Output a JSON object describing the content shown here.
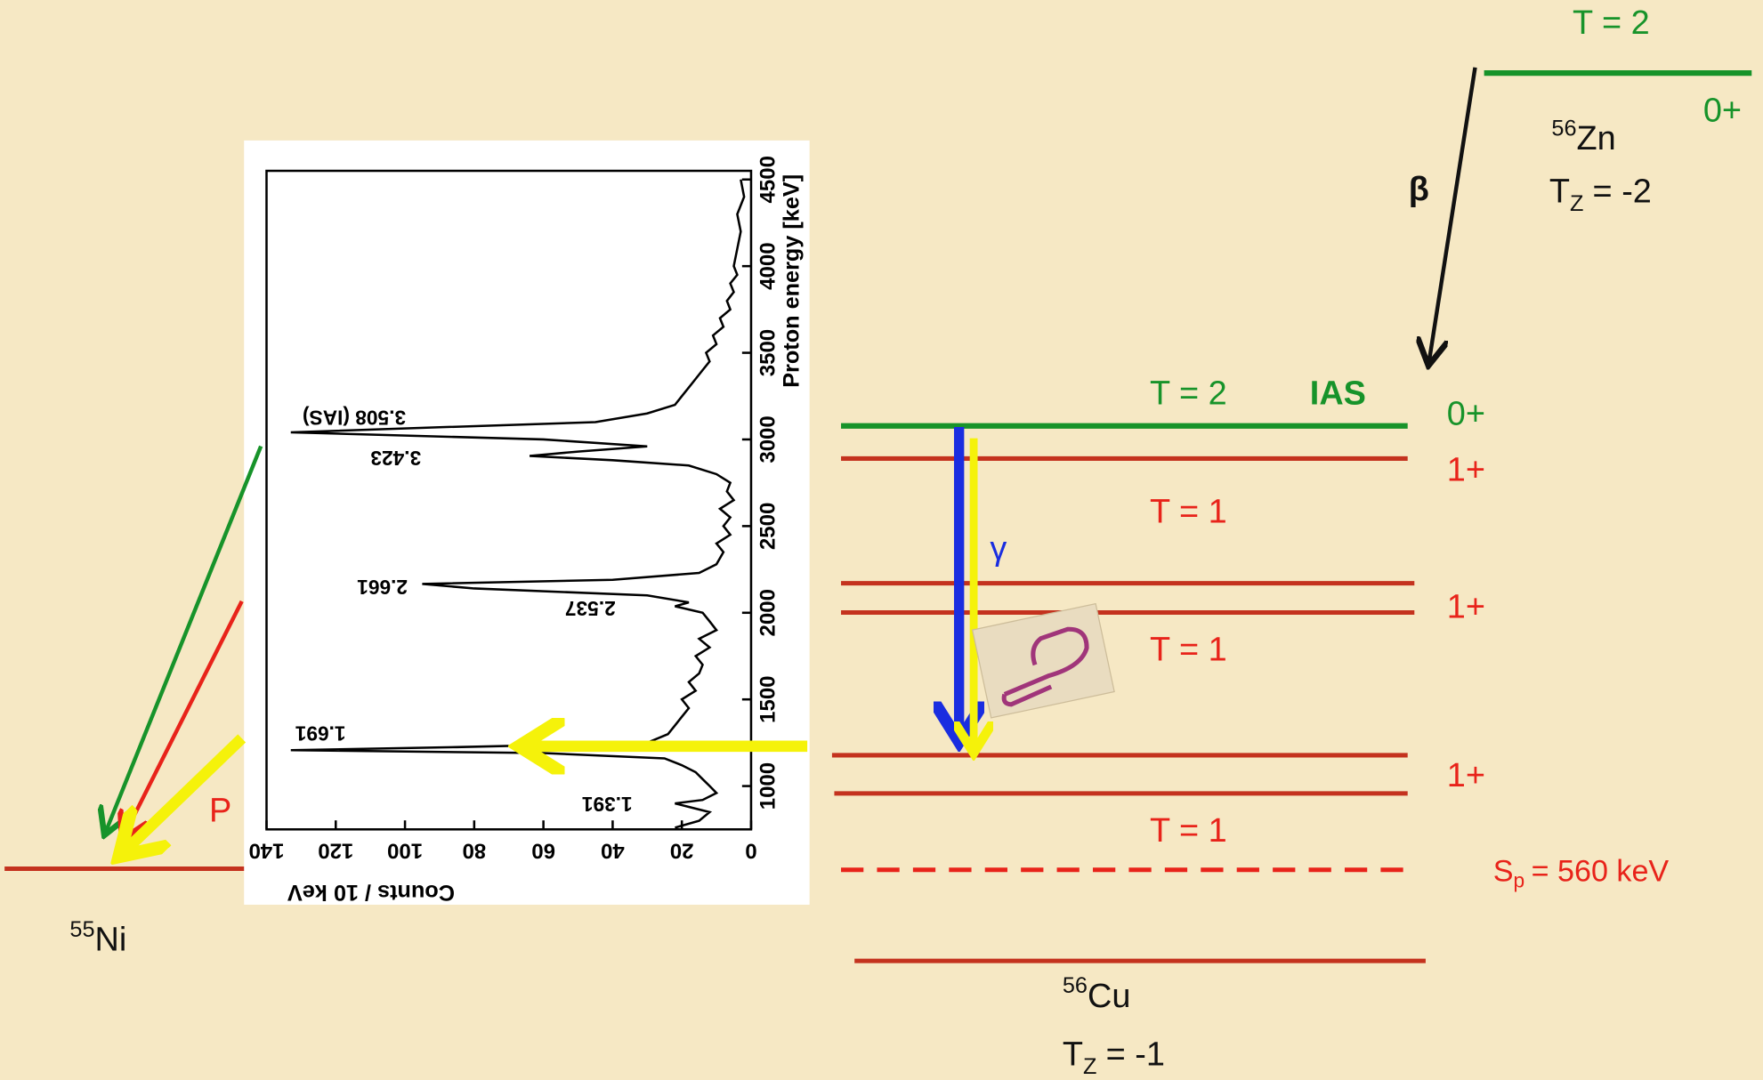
{
  "diagram": {
    "zn56": {
      "level_isospin": "T = 2",
      "spin": "0+",
      "mass": "56",
      "symbol": "Zn",
      "tz": {
        "t": "T",
        "sub": "Z",
        "value": "= -2"
      }
    },
    "beta": "β",
    "cu56": {
      "ias_isospin": "T = 2",
      "ias": "IAS",
      "ias_spin": "0+",
      "spins": [
        "1+",
        "1+",
        "1+"
      ],
      "isospins": [
        "T = 1",
        "T = 1",
        "T = 1"
      ],
      "sp": {
        "s": "S",
        "sub": "p",
        "value": "= 560 keV"
      },
      "mass": "56",
      "symbol": "Cu",
      "tz": {
        "t": "T",
        "sub": "Z",
        "value": "= -1"
      }
    },
    "gamma": "γ",
    "proton": "P",
    "ni55": {
      "mass": "55",
      "symbol": "Ni"
    }
  },
  "chart_data": {
    "type": "line",
    "x_label": "Proton energy [keV]",
    "y_label": "Counts / 10 keV",
    "x": [
      760,
      800,
      850,
      880,
      900,
      920,
      960,
      1000,
      1040,
      1080,
      1120,
      1160,
      1190,
      1207,
      1225,
      1250,
      1300,
      1350,
      1400,
      1450,
      1500,
      1550,
      1600,
      1650,
      1700,
      1750,
      1800,
      1850,
      1900,
      1950,
      2000,
      2037,
      2060,
      2100,
      2140,
      2166,
      2190,
      2230,
      2280,
      2350,
      2400,
      2450,
      2500,
      2550,
      2600,
      2650,
      2700,
      2750,
      2800,
      2850,
      2880,
      2905,
      2930,
      2960,
      3000,
      3041,
      3070,
      3100,
      3150,
      3200,
      3250,
      3300,
      3350,
      3400,
      3450,
      3500,
      3550,
      3600,
      3650,
      3700,
      3750,
      3800,
      3850,
      3900,
      3950,
      4000,
      4100,
      4200,
      4300,
      4400,
      4500
    ],
    "values": [
      22,
      15,
      12,
      18,
      22,
      14,
      10,
      12,
      14,
      16,
      20,
      25,
      60,
      133,
      85,
      30,
      24,
      22,
      20,
      18,
      20,
      16,
      18,
      15,
      14,
      16,
      12,
      15,
      10,
      12,
      14,
      22,
      18,
      30,
      80,
      95,
      40,
      15,
      10,
      8,
      10,
      6,
      8,
      6,
      9,
      5,
      7,
      6,
      10,
      18,
      40,
      64,
      50,
      30,
      60,
      133,
      90,
      45,
      30,
      22,
      20,
      18,
      16,
      14,
      12,
      13,
      10,
      11,
      8,
      9,
      6,
      7,
      5,
      6,
      4,
      5,
      4,
      3,
      4,
      2,
      3
    ],
    "xlim": [
      750,
      4550
    ],
    "ylim": [
      0,
      140
    ],
    "xticks": [
      1000,
      1500,
      2000,
      2500,
      3000,
      3500,
      4000,
      4500
    ],
    "yticks": [
      0,
      20,
      40,
      60,
      80,
      100,
      120,
      140
    ],
    "annotations": [
      "3.508 (IAS)",
      "3.423",
      "2.661",
      "2.537",
      "1.691",
      "1.391"
    ],
    "color": "#000000"
  }
}
